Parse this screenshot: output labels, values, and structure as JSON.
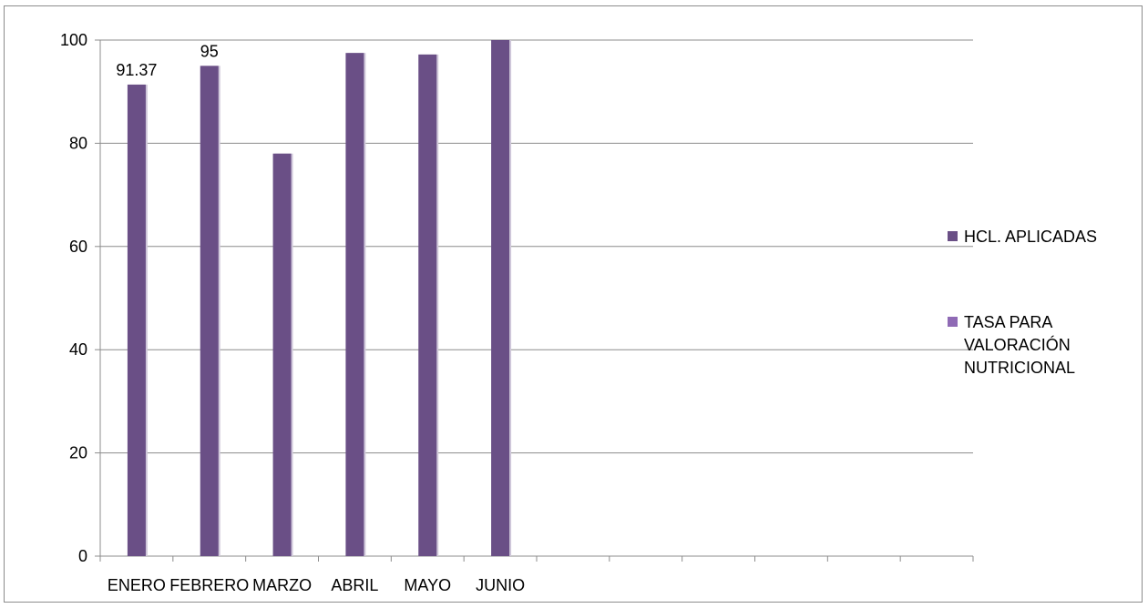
{
  "chart_data": {
    "type": "bar",
    "categories": [
      "ENERO",
      "FEBRERO",
      "MARZO",
      "ABRIL",
      "MAYO",
      "JUNIO",
      "",
      "",
      "",
      "",
      "",
      ""
    ],
    "series": [
      {
        "name": "HCL. APLICADAS",
        "color": "#6a4f86",
        "values": [
          91.37,
          95,
          78,
          97.5,
          97.2,
          100,
          null,
          null,
          null,
          null,
          null,
          null
        ]
      },
      {
        "name": "TASA PARA VALORACIÓN NUTRICIONAL",
        "color": "#8f6ab5",
        "values": [
          null,
          null,
          null,
          null,
          null,
          null,
          null,
          null,
          null,
          null,
          null,
          null
        ]
      }
    ],
    "data_labels": [
      "91.37",
      "95",
      null,
      null,
      null,
      null,
      null,
      null,
      null,
      null,
      null,
      null
    ],
    "ylim": [
      0,
      100
    ],
    "y_ticks": [
      0,
      20,
      40,
      60,
      80,
      100
    ],
    "grid": true,
    "legend_position": "right",
    "title": "",
    "xlabel": "",
    "ylabel": ""
  },
  "legend": {
    "items": [
      {
        "lines": [
          "HCL. APLICADAS"
        ]
      },
      {
        "lines": [
          "TASA PARA",
          "VALORACIÓN",
          "NUTRICIONAL"
        ]
      }
    ]
  }
}
